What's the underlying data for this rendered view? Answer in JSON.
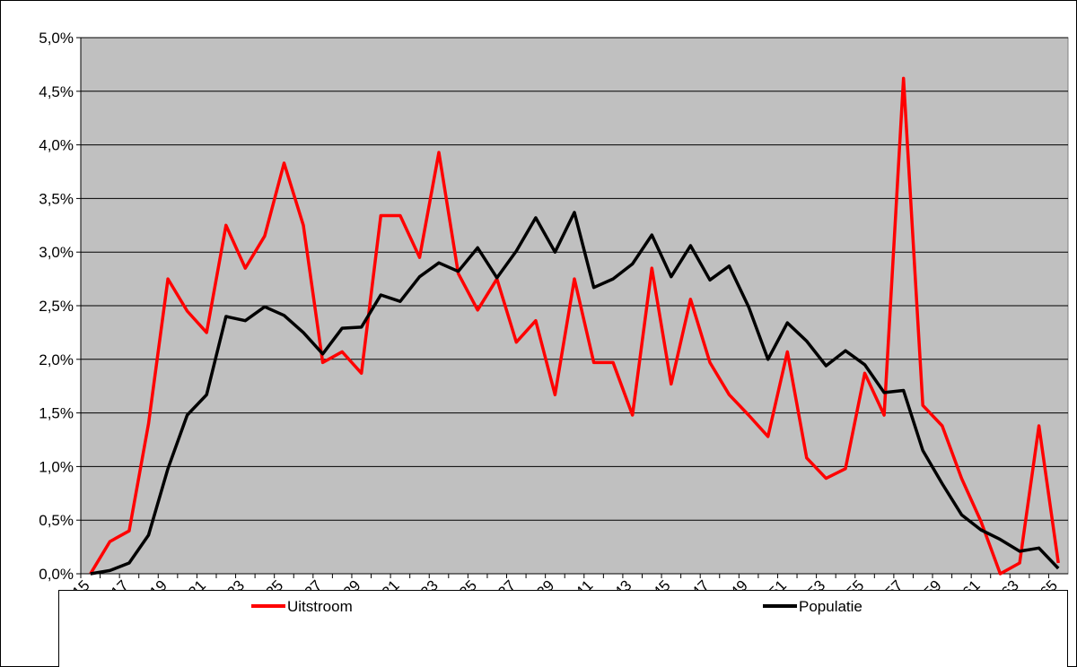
{
  "chart_data": {
    "type": "line",
    "categories": [
      "15",
      null,
      "17",
      null,
      "19",
      null,
      "21",
      null,
      "23",
      null,
      "25",
      null,
      "27",
      null,
      "29",
      null,
      "31",
      null,
      "33",
      null,
      "35",
      null,
      "37",
      null,
      "39",
      null,
      "41",
      null,
      "43",
      null,
      "45",
      null,
      "47",
      null,
      "49",
      null,
      "51",
      null,
      "53",
      null,
      "55",
      null,
      "57",
      null,
      "59",
      null,
      "61",
      null,
      "63",
      null,
      "65"
    ],
    "series": [
      {
        "name": "Uitstroom",
        "color": "#ff0000",
        "values": [
          0,
          0.3,
          0.4,
          1.4,
          2.75,
          2.45,
          2.25,
          3.25,
          2.85,
          3.15,
          3.83,
          3.25,
          1.97,
          2.07,
          1.87,
          3.34,
          3.34,
          2.95,
          3.93,
          2.8,
          2.46,
          2.75,
          2.16,
          2.36,
          1.67,
          2.75,
          1.97,
          1.97,
          1.48,
          2.85,
          1.77,
          2.56,
          1.97,
          1.67,
          1.48,
          1.28,
          2.07,
          1.08,
          0.89,
          0.98,
          1.87,
          1.48,
          4.62,
          1.57,
          1.38,
          0.89,
          0.49,
          0.0,
          0.1,
          1.38,
          0.1
        ]
      },
      {
        "name": "Populatie",
        "color": "#000000",
        "values": [
          0,
          0.03,
          0.1,
          0.36,
          0.98,
          1.48,
          1.67,
          2.4,
          2.36,
          2.49,
          2.41,
          2.25,
          2.05,
          2.29,
          2.3,
          2.6,
          2.54,
          2.77,
          2.9,
          2.82,
          3.04,
          2.76,
          3.01,
          3.32,
          3.0,
          3.37,
          2.67,
          2.75,
          2.89,
          3.16,
          2.77,
          3.06,
          2.74,
          2.87,
          2.49,
          2.0,
          2.34,
          2.17,
          1.94,
          2.08,
          1.95,
          1.69,
          1.71,
          1.15,
          0.84,
          0.55,
          0.41,
          0.32,
          0.21,
          0.24,
          0.05
        ]
      }
    ],
    "ylim": [
      0,
      5
    ],
    "yticks": [
      {
        "value": 0,
        "label": "0,0%"
      },
      {
        "value": 0.5,
        "label": "0,5%"
      },
      {
        "value": 1,
        "label": "1,0%"
      },
      {
        "value": 1.5,
        "label": "1,5%"
      },
      {
        "value": 2,
        "label": "2,0%"
      },
      {
        "value": 2.5,
        "label": "2,5%"
      },
      {
        "value": 3,
        "label": "3,0%"
      },
      {
        "value": 3.5,
        "label": "3,5%"
      },
      {
        "value": 4,
        "label": "4,0%"
      },
      {
        "value": 4.5,
        "label": "4,5%"
      },
      {
        "value": 5,
        "label": "5,0%"
      }
    ],
    "grid": true,
    "plot_background": "#c0c0c0",
    "legend": "bottom"
  }
}
